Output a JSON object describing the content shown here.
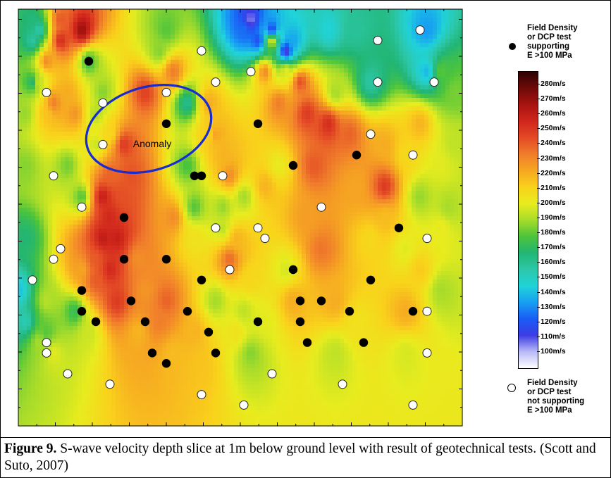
{
  "chart_data": {
    "type": "heatmap",
    "title": "",
    "xlabel": "",
    "ylabel": "",
    "grid": false,
    "annotation": {
      "label": "Anomaly",
      "shape": "ellipse",
      "color": "#1a2ccf"
    },
    "colorbar": {
      "unit": "m/s",
      "range": [
        100,
        280
      ],
      "tick_labels": [
        "280m/s",
        "270m/s",
        "260m/s",
        "250m/s",
        "240m/s",
        "230m/s",
        "220m/s",
        "210m/s",
        "200m/s",
        "190m/s",
        "180m/s",
        "170m/s",
        "160m/s",
        "150m/s",
        "140m/s",
        "130m/s",
        "120m/s",
        "110m/s",
        "100m/s"
      ],
      "colors": [
        "#ffffff",
        "#b9b9f7",
        "#3d3ce4",
        "#1a5cf5",
        "#17a0f2",
        "#20d3d8",
        "#2cc7a8",
        "#22b573",
        "#4cc43c",
        "#a8dc2a",
        "#e8ec1e",
        "#f9d21b",
        "#f6a722",
        "#f07d2b",
        "#e34a25",
        "#d0261c",
        "#a81410",
        "#6e0a08",
        "#2e0403"
      ]
    },
    "legend": [
      {
        "symbol": "filled-circle",
        "label": "Field Density\nor DCP test\nsupporting\nE >100 MPa"
      },
      {
        "symbol": "open-circle",
        "label": "Field Density\nor DCP test\nnot supporting\nE >100 MPa"
      }
    ],
    "field": [
      [
        2,
        1,
        3.8
      ],
      [
        3,
        2,
        3.3
      ],
      [
        2,
        3,
        3.4
      ],
      [
        6,
        1,
        7.6
      ],
      [
        6,
        3,
        8.2
      ],
      [
        9,
        2,
        9.0
      ],
      [
        4,
        5,
        7.0
      ],
      [
        2,
        7,
        3.9
      ],
      [
        3,
        7,
        5.3
      ],
      [
        7,
        8,
        6.6
      ],
      [
        5,
        9,
        7.2
      ],
      [
        4,
        10,
        6.3
      ],
      [
        8,
        10,
        6.9
      ],
      [
        10,
        5,
        4.3
      ],
      [
        12,
        8,
        4.8
      ],
      [
        11,
        10,
        5.1
      ],
      [
        18,
        8,
        7.9
      ],
      [
        22,
        6,
        7.2
      ],
      [
        21,
        2,
        4.5
      ],
      [
        20,
        4,
        4.8
      ],
      [
        24,
        9,
        3.6
      ],
      [
        27,
        12,
        6.1
      ],
      [
        28,
        12,
        6.7
      ],
      [
        29,
        14,
        6.5
      ],
      [
        30,
        16,
        7.0
      ],
      [
        29,
        19,
        4.9
      ],
      [
        31,
        22,
        6.5
      ],
      [
        30,
        24,
        7.4
      ],
      [
        33,
        26,
        6.0
      ],
      [
        32,
        29,
        5.2
      ],
      [
        31,
        31,
        5.8
      ],
      [
        33,
        33,
        4.8
      ],
      [
        36,
        3,
        5.6
      ],
      [
        38,
        6,
        5.5
      ],
      [
        40,
        7,
        7.7
      ],
      [
        37,
        9,
        7.2
      ],
      [
        41,
        10,
        8.0
      ],
      [
        44,
        11,
        8.2
      ],
      [
        47,
        12,
        7.5
      ],
      [
        52,
        13,
        6.6
      ],
      [
        55,
        14,
        6.0
      ],
      [
        52,
        17,
        8.0
      ],
      [
        52,
        20,
        6.4
      ],
      [
        50,
        22,
        6.0
      ],
      [
        55,
        23,
        5.5
      ],
      [
        61,
        19,
        5.0
      ],
      [
        60,
        21,
        5.6
      ],
      [
        57,
        18,
        4.9
      ],
      [
        58,
        6,
        2.5
      ],
      [
        50,
        7,
        3.4
      ],
      [
        45,
        8,
        5.0
      ],
      [
        42,
        15,
        7.6
      ],
      [
        37,
        15,
        5.6
      ],
      [
        35,
        17,
        6.5
      ],
      [
        32,
        18,
        5.0
      ],
      [
        35,
        6,
        7.0
      ],
      [
        27,
        9,
        6.6
      ],
      [
        15,
        13,
        8.0
      ],
      [
        13,
        12,
        6.0
      ],
      [
        11,
        13,
        5.3
      ],
      [
        13,
        16,
        7.5
      ],
      [
        12,
        18,
        8.5
      ],
      [
        16,
        16,
        7.7
      ],
      [
        15,
        18,
        7.7
      ],
      [
        13,
        20,
        8.3
      ],
      [
        14,
        22,
        8.5
      ],
      [
        12,
        22,
        8.6
      ],
      [
        11,
        24,
        7.6
      ],
      [
        11,
        26,
        7.6
      ],
      [
        9,
        25,
        6.7
      ],
      [
        13,
        25,
        8.3
      ],
      [
        14,
        28,
        8.0
      ],
      [
        17,
        24,
        7.0
      ],
      [
        18,
        27,
        6.9
      ],
      [
        20,
        30,
        7.2
      ],
      [
        22,
        33,
        6.4
      ],
      [
        8,
        29,
        4.2
      ],
      [
        4,
        28,
        5.1
      ],
      [
        4,
        31,
        4.5
      ],
      [
        3,
        32,
        5.0
      ],
      [
        21,
        28,
        7.5
      ],
      [
        25,
        31,
        6.5
      ],
      [
        28,
        28,
        5.0
      ],
      [
        26,
        34,
        6.3
      ],
      [
        33,
        1,
        0.8
      ],
      [
        36,
        2,
        1.3
      ],
      [
        38,
        4,
        1.0
      ],
      [
        39,
        3,
        2.3
      ],
      [
        34,
        3,
        1.5
      ],
      [
        32,
        2,
        1.8
      ],
      [
        44,
        2,
        2.8
      ],
      [
        48,
        2,
        3.5
      ],
      [
        58,
        2,
        2.2
      ],
      [
        60,
        6,
        4.5
      ],
      [
        62,
        8,
        4.7
      ],
      [
        43,
        23,
        7.3
      ],
      [
        45,
        28,
        6.6
      ],
      [
        39,
        28,
        6.6
      ],
      [
        35,
        30,
        5.5
      ],
      [
        17,
        31,
        6.5
      ],
      [
        22,
        20,
        7.0
      ],
      [
        25,
        19,
        4.5
      ],
      [
        24,
        15,
        4.4
      ],
      [
        25,
        22,
        5.8
      ],
      [
        29,
        21,
        5.2
      ],
      [
        9,
        18,
        4.5
      ],
      [
        7,
        15,
        4.7
      ],
      [
        1,
        10,
        4.9
      ],
      [
        1,
        15,
        4.8
      ],
      [
        1,
        22,
        3.9
      ],
      [
        0,
        27,
        2.6
      ],
      [
        1,
        30,
        3.2
      ],
      [
        5,
        33,
        5.5
      ],
      [
        10,
        31,
        5.3
      ],
      [
        55,
        29,
        6.6
      ],
      [
        60,
        27,
        5.0
      ],
      [
        57,
        25,
        6.2
      ],
      [
        55,
        33,
        5.4
      ],
      [
        45,
        33,
        5.2
      ],
      [
        48,
        30,
        5.8
      ],
      [
        38,
        25,
        5.4
      ],
      [
        41,
        20,
        6.8
      ],
      [
        57,
        11,
        6.5
      ],
      [
        48,
        17,
        6.7
      ],
      [
        60,
        15,
        5.5
      ],
      [
        62,
        13,
        5.2
      ]
    ],
    "points": [
      {
        "x": 10,
        "y": 5,
        "status": "supporting"
      },
      {
        "x": 21,
        "y": 11,
        "status": "supporting"
      },
      {
        "x": 34,
        "y": 11,
        "status": "supporting"
      },
      {
        "x": 39,
        "y": 15,
        "status": "supporting"
      },
      {
        "x": 25,
        "y": 16,
        "status": "supporting"
      },
      {
        "x": 48,
        "y": 14,
        "status": "supporting"
      },
      {
        "x": 26,
        "y": 16,
        "status": "supporting"
      },
      {
        "x": 15,
        "y": 20,
        "status": "supporting"
      },
      {
        "x": 54,
        "y": 21,
        "status": "supporting"
      },
      {
        "x": 15,
        "y": 24,
        "status": "supporting"
      },
      {
        "x": 21,
        "y": 24,
        "status": "supporting"
      },
      {
        "x": 26,
        "y": 26,
        "status": "supporting"
      },
      {
        "x": 39,
        "y": 25,
        "status": "supporting"
      },
      {
        "x": 9,
        "y": 27,
        "status": "supporting"
      },
      {
        "x": 16,
        "y": 28,
        "status": "supporting"
      },
      {
        "x": 40,
        "y": 28,
        "status": "supporting"
      },
      {
        "x": 43,
        "y": 28,
        "status": "supporting"
      },
      {
        "x": 50,
        "y": 26,
        "status": "supporting"
      },
      {
        "x": 9,
        "y": 29,
        "status": "supporting"
      },
      {
        "x": 47,
        "y": 29,
        "status": "supporting"
      },
      {
        "x": 56,
        "y": 29,
        "status": "supporting"
      },
      {
        "x": 11,
        "y": 30,
        "status": "supporting"
      },
      {
        "x": 18,
        "y": 30,
        "status": "supporting"
      },
      {
        "x": 24,
        "y": 29,
        "status": "supporting"
      },
      {
        "x": 34,
        "y": 30,
        "status": "supporting"
      },
      {
        "x": 40,
        "y": 30,
        "status": "supporting"
      },
      {
        "x": 27,
        "y": 31,
        "status": "supporting"
      },
      {
        "x": 41,
        "y": 32,
        "status": "supporting"
      },
      {
        "x": 49,
        "y": 32,
        "status": "supporting"
      },
      {
        "x": 19,
        "y": 33,
        "status": "supporting"
      },
      {
        "x": 21,
        "y": 34,
        "status": "supporting"
      },
      {
        "x": 28,
        "y": 33,
        "status": "supporting"
      },
      {
        "x": 26,
        "y": 4,
        "status": "not-supporting"
      },
      {
        "x": 33,
        "y": 6,
        "status": "not-supporting"
      },
      {
        "x": 51,
        "y": 3,
        "status": "not-supporting"
      },
      {
        "x": 57,
        "y": 2,
        "status": "not-supporting"
      },
      {
        "x": 4,
        "y": 8,
        "status": "not-supporting"
      },
      {
        "x": 12,
        "y": 9,
        "status": "not-supporting"
      },
      {
        "x": 21,
        "y": 8,
        "status": "not-supporting"
      },
      {
        "x": 28,
        "y": 7,
        "status": "not-supporting"
      },
      {
        "x": 51,
        "y": 7,
        "status": "not-supporting"
      },
      {
        "x": 59,
        "y": 7,
        "status": "not-supporting"
      },
      {
        "x": 12,
        "y": 13,
        "status": "not-supporting"
      },
      {
        "x": 50,
        "y": 12,
        "status": "not-supporting"
      },
      {
        "x": 56,
        "y": 14,
        "status": "not-supporting"
      },
      {
        "x": 5,
        "y": 16,
        "status": "not-supporting"
      },
      {
        "x": 29,
        "y": 16,
        "status": "not-supporting"
      },
      {
        "x": 9,
        "y": 19,
        "status": "not-supporting"
      },
      {
        "x": 43,
        "y": 19,
        "status": "not-supporting"
      },
      {
        "x": 28,
        "y": 21,
        "status": "not-supporting"
      },
      {
        "x": 34,
        "y": 21,
        "status": "not-supporting"
      },
      {
        "x": 35,
        "y": 22,
        "status": "not-supporting"
      },
      {
        "x": 58,
        "y": 22,
        "status": "not-supporting"
      },
      {
        "x": 6,
        "y": 23,
        "status": "not-supporting"
      },
      {
        "x": 5,
        "y": 24,
        "status": "not-supporting"
      },
      {
        "x": 30,
        "y": 25,
        "status": "not-supporting"
      },
      {
        "x": 2,
        "y": 26,
        "status": "not-supporting"
      },
      {
        "x": 58,
        "y": 29,
        "status": "not-supporting"
      },
      {
        "x": 4,
        "y": 32,
        "status": "not-supporting"
      },
      {
        "x": 4,
        "y": 33,
        "status": "not-supporting"
      },
      {
        "x": 58,
        "y": 33,
        "status": "not-supporting"
      },
      {
        "x": 7,
        "y": 35,
        "status": "not-supporting"
      },
      {
        "x": 36,
        "y": 35,
        "status": "not-supporting"
      },
      {
        "x": 46,
        "y": 36,
        "status": "not-supporting"
      },
      {
        "x": 13,
        "y": 36,
        "status": "not-supporting"
      },
      {
        "x": 26,
        "y": 37,
        "status": "not-supporting"
      },
      {
        "x": 32,
        "y": 38,
        "status": "not-supporting"
      },
      {
        "x": 56,
        "y": 38,
        "status": "not-supporting"
      }
    ]
  },
  "legend": {
    "top_label": "Field Density\nor DCP test\nsupporting\nE >100 MPa",
    "bottom_label": "Field Density\nor DCP test\nnot supporting\nE >100 MPa"
  },
  "anomaly": {
    "label": "Anomaly"
  },
  "caption": {
    "label": "Figure 9.",
    "text": "  S-wave velocity depth slice at 1m below ground level with result of geotechnical tests. (Scott and Suto, 2007)"
  }
}
